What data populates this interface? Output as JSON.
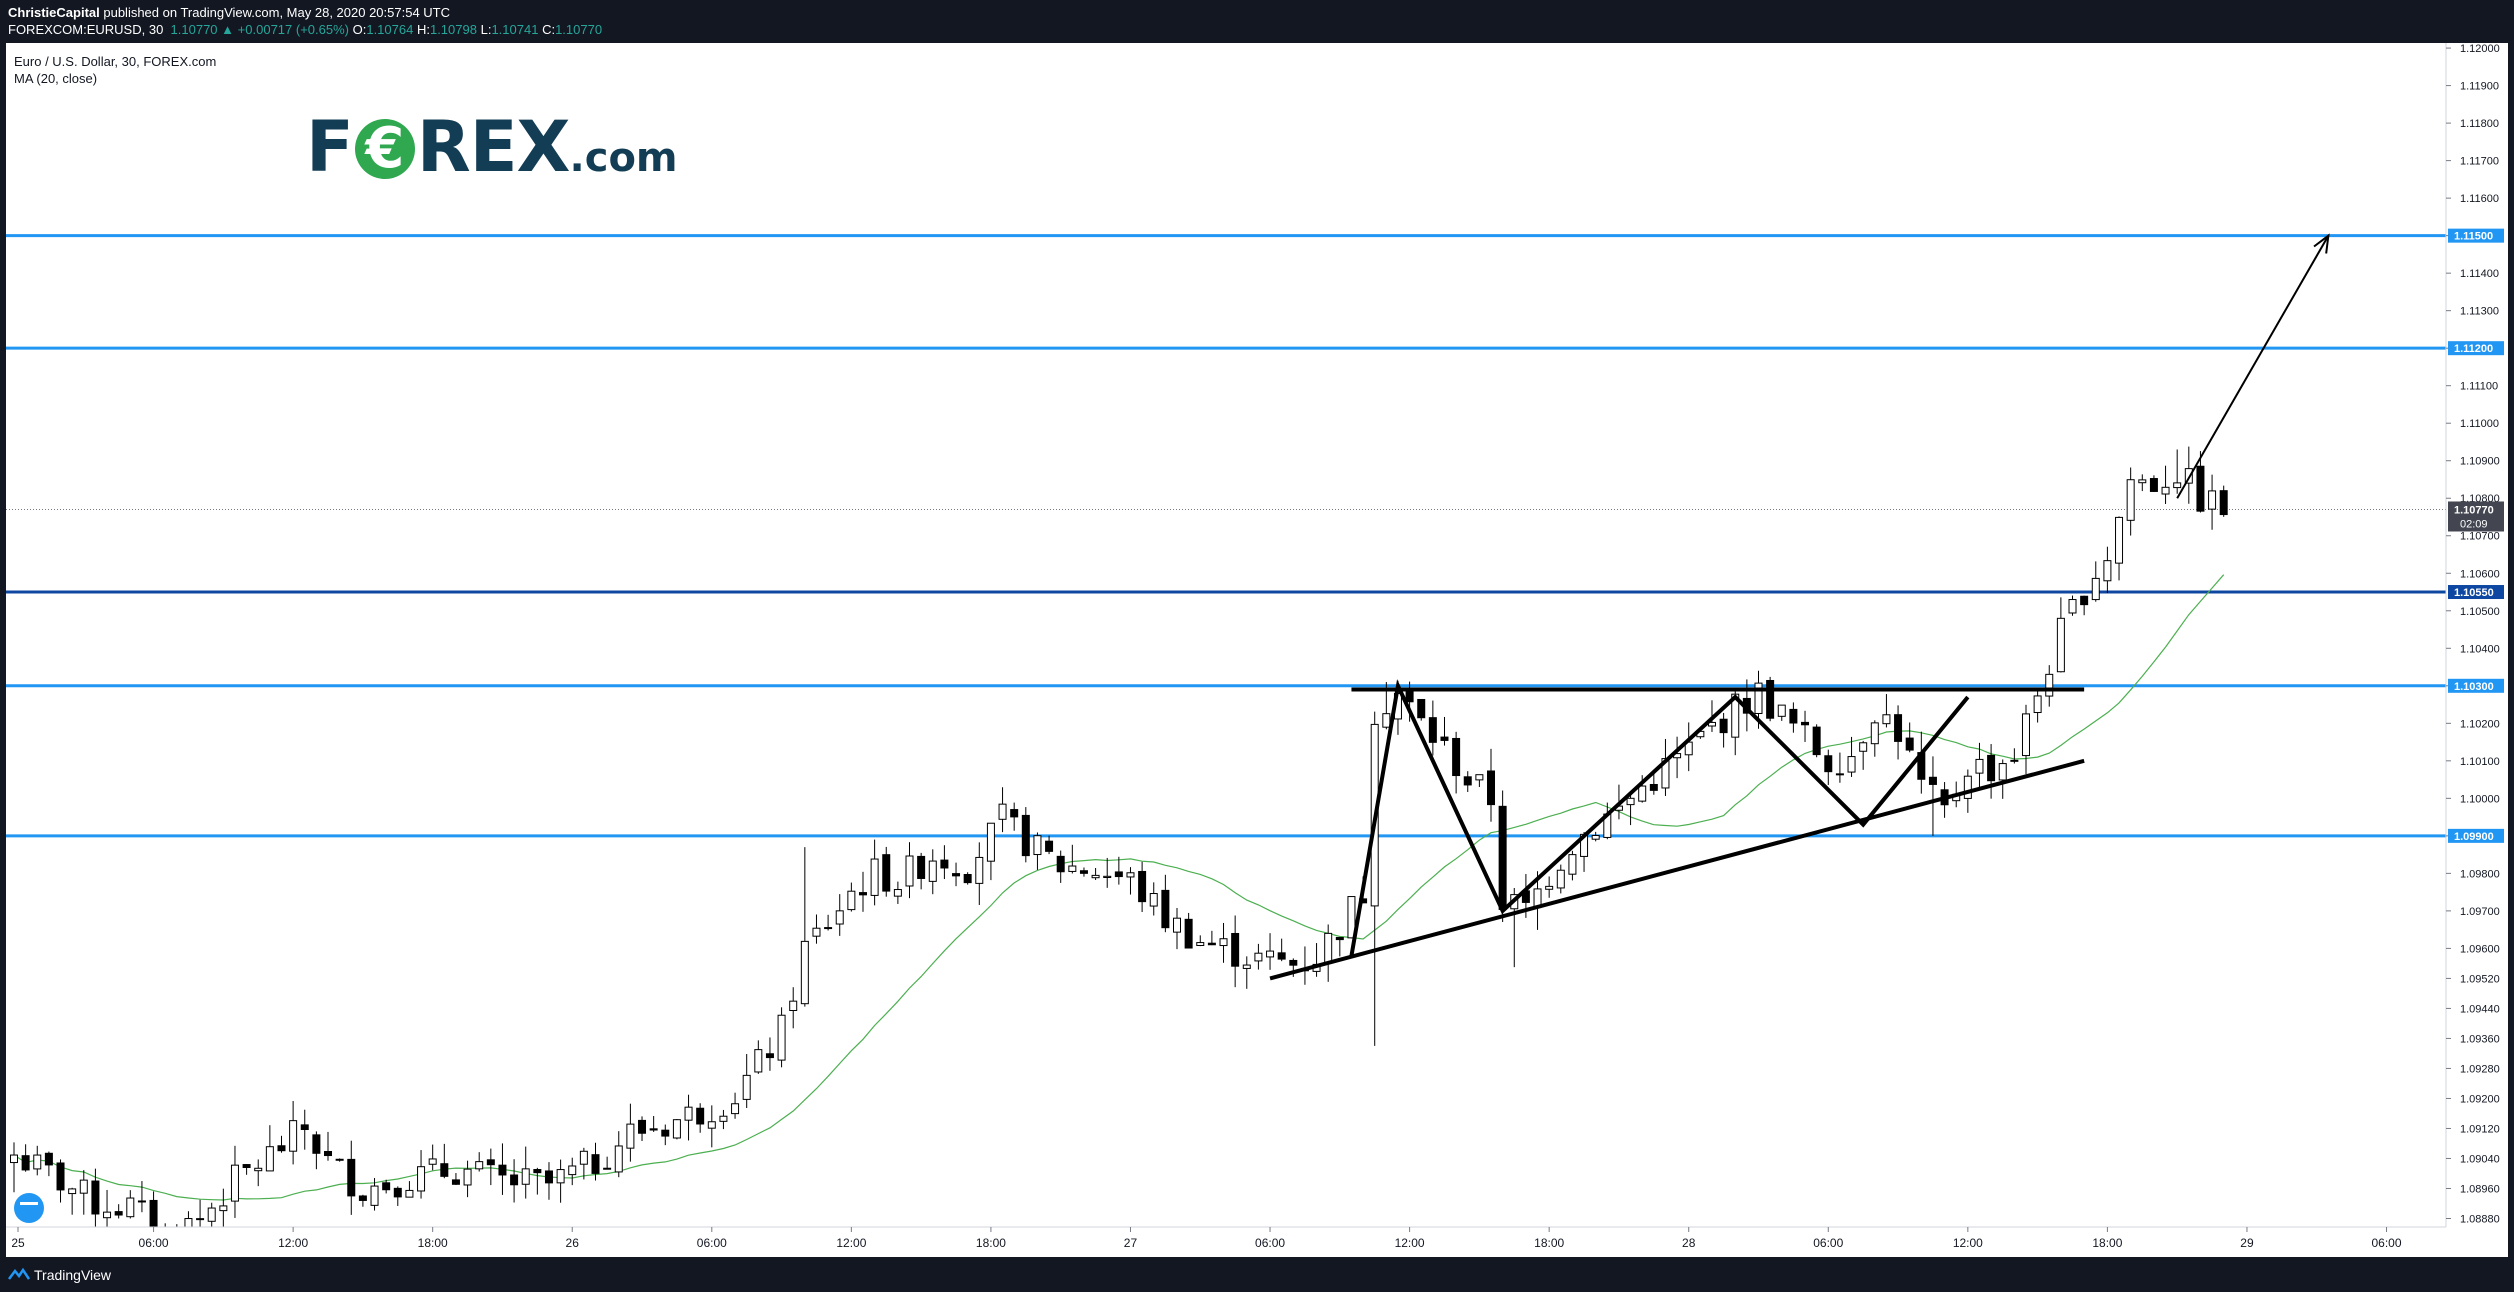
{
  "header": {
    "author": "ChristieCapital",
    "published_text": " published on TradingView.com, May 28, 2020 20:57:54 UTC",
    "symbol": "FOREXCOM:EURUSD, 30",
    "last": "1.10770",
    "change": "+0.00717 (+0.65%)",
    "o_label": "O:",
    "o_value": "1.10764",
    "h_label": "H:",
    "h_value": "1.10798",
    "l_label": "L:",
    "l_value": "1.10741",
    "c_label": "C:",
    "c_value": "1.10770"
  },
  "legend": {
    "title": "Euro / U.S. Dollar, 30, FOREX.com",
    "indicator": "MA (20, close)"
  },
  "logo": {
    "part1": "F",
    "part2": "€",
    "part3": "REX",
    "part4": ".com"
  },
  "footer": {
    "brand": "TradingView"
  },
  "colors": {
    "up_candle": "#ffffff",
    "down_candle": "#000000",
    "level_line": "#2196f3",
    "level_line_dark": "#0d47a1",
    "ma": "#4caf50",
    "axis_bg": "#ffffff",
    "frame": "#131722"
  },
  "chart_data": {
    "type": "candlestick",
    "title": "Euro / U.S. Dollar, 30, FOREX.com",
    "ylim": [
      1.0882,
      1.1204
    ],
    "y_ticks": [
      "1.12000",
      "1.11900",
      "1.11800",
      "1.11700",
      "1.11600",
      "1.11500",
      "1.11400",
      "1.11300",
      "1.11200",
      "1.11100",
      "1.11000",
      "1.10900",
      "1.10800",
      "1.10700",
      "1.10600",
      "1.10500",
      "1.10400",
      "1.10300",
      "1.10200",
      "1.10100",
      "1.10000",
      "1.09900",
      "1.09800",
      "1.09700",
      "1.09600",
      "1.09520",
      "1.09440",
      "1.09360",
      "1.09280",
      "1.09200",
      "1.09120",
      "1.09040",
      "1.08960",
      "1.08880"
    ],
    "x_ticks": [
      {
        "label": "25",
        "t": 0
      },
      {
        "label": "06:00",
        "t": 12
      },
      {
        "label": "12:00",
        "t": 24
      },
      {
        "label": "18:00",
        "t": 36
      },
      {
        "label": "26",
        "t": 48
      },
      {
        "label": "06:00",
        "t": 60
      },
      {
        "label": "12:00",
        "t": 72
      },
      {
        "label": "18:00",
        "t": 84
      },
      {
        "label": "27",
        "t": 96
      },
      {
        "label": "06:00",
        "t": 108
      },
      {
        "label": "12:00",
        "t": 120
      },
      {
        "label": "18:00",
        "t": 132
      },
      {
        "label": "28",
        "t": 144
      },
      {
        "label": "06:00",
        "t": 156
      },
      {
        "label": "12:00",
        "t": 168
      },
      {
        "label": "18:00",
        "t": 180
      },
      {
        "label": "29",
        "t": 192
      },
      {
        "label": "06:00",
        "t": 204
      }
    ],
    "horizontal_levels": [
      {
        "price": 1.115,
        "label": "1.11500",
        "style": "light"
      },
      {
        "price": 1.112,
        "label": "1.11200",
        "style": "light"
      },
      {
        "price": 1.1055,
        "label": "1.10550",
        "style": "dark"
      },
      {
        "price": 1.103,
        "label": "1.10300",
        "style": "light"
      },
      {
        "price": 1.099,
        "label": "1.09900",
        "style": "light"
      }
    ],
    "current_price": {
      "price": 1.1077,
      "label": "1.10770",
      "countdown": "02:09"
    },
    "close_path": [
      [
        0,
        1.0905
      ],
      [
        4,
        1.0898
      ],
      [
        7,
        1.0892
      ],
      [
        10,
        1.0891
      ],
      [
        13,
        1.0884
      ],
      [
        16,
        1.0888
      ],
      [
        19,
        1.0898
      ],
      [
        22,
        1.0905
      ],
      [
        25,
        1.0912
      ],
      [
        27,
        1.0903
      ],
      [
        30,
        1.0896
      ],
      [
        34,
        1.0899
      ],
      [
        38,
        1.0901
      ],
      [
        42,
        1.0898
      ],
      [
        46,
        1.0897
      ],
      [
        50,
        1.0903
      ],
      [
        53,
        1.0911
      ],
      [
        56,
        1.0913
      ],
      [
        60,
        1.0918
      ],
      [
        62,
        1.0921
      ],
      [
        64,
        1.0929
      ],
      [
        66,
        1.0938
      ],
      [
        68,
        1.096
      ],
      [
        70,
        1.0967
      ],
      [
        72,
        1.0975
      ],
      [
        74,
        1.098
      ],
      [
        76,
        1.0978
      ],
      [
        79,
        1.0985
      ],
      [
        82,
        1.0982
      ],
      [
        85,
        1.0994
      ],
      [
        88,
        1.0986
      ],
      [
        90,
        1.0982
      ],
      [
        93,
        1.0981
      ],
      [
        96,
        1.0978
      ],
      [
        99,
        1.0968
      ],
      [
        102,
        1.0962
      ],
      [
        104,
        1.096
      ],
      [
        107,
        1.0957
      ],
      [
        110,
        1.0956
      ],
      [
        112,
        1.0958
      ],
      [
        114,
        1.0966
      ],
      [
        116,
        1.0975
      ],
      [
        117,
        1.1024
      ],
      [
        119,
        1.1028
      ],
      [
        121,
        1.102
      ],
      [
        123,
        1.1013
      ],
      [
        125,
        1.1005
      ],
      [
        127,
        1.1
      ],
      [
        128,
        1.0973
      ],
      [
        130,
        1.097
      ],
      [
        132,
        1.098
      ],
      [
        134,
        1.0988
      ],
      [
        136,
        1.0993
      ],
      [
        138,
        1.0997
      ],
      [
        140,
        1.1003
      ],
      [
        142,
        1.1008
      ],
      [
        144,
        1.1013
      ],
      [
        146,
        1.1019
      ],
      [
        148,
        1.1024
      ],
      [
        150,
        1.1028
      ],
      [
        152,
        1.1022
      ],
      [
        154,
        1.1016
      ],
      [
        156,
        1.101
      ],
      [
        158,
        1.1012
      ],
      [
        160,
        1.1024
      ],
      [
        162,
        1.1018
      ],
      [
        164,
        1.1003
      ],
      [
        166,
        1.0996
      ],
      [
        168,
        1.1009
      ],
      [
        170,
        1.1008
      ],
      [
        172,
        1.1012
      ],
      [
        174,
        1.1028
      ],
      [
        176,
        1.1044
      ],
      [
        178,
        1.1056
      ],
      [
        180,
        1.1065
      ],
      [
        182,
        1.1085
      ],
      [
        184,
        1.1084
      ],
      [
        186,
        1.1087
      ],
      [
        188,
        1.108
      ],
      [
        190,
        1.1077
      ]
    ],
    "key_lows": [
      [
        0,
        1.0895
      ],
      [
        13,
        1.0875
      ],
      [
        117,
        1.0934
      ],
      [
        129,
        1.0955
      ],
      [
        165,
        1.099
      ]
    ],
    "key_highs": [
      [
        25,
        1.0917
      ],
      [
        68,
        1.0987
      ],
      [
        118,
        1.1031
      ],
      [
        150,
        1.1034
      ],
      [
        186,
        1.1093
      ]
    ],
    "drawings": {
      "resistance": {
        "from": [
          115,
          1.1029
        ],
        "to": [
          178,
          1.1029
        ]
      },
      "ascending_support": {
        "from": [
          108,
          1.0952
        ],
        "to": [
          178,
          1.101
        ]
      },
      "zigzag": [
        [
          115,
          1.0958
        ],
        [
          119,
          1.103
        ],
        [
          128,
          1.097
        ],
        [
          148,
          1.1027
        ],
        [
          159,
          1.0993
        ],
        [
          168,
          1.1027
        ]
      ],
      "arrow": {
        "from": [
          186,
          1.108
        ],
        "to": [
          199,
          1.115
        ]
      }
    }
  }
}
